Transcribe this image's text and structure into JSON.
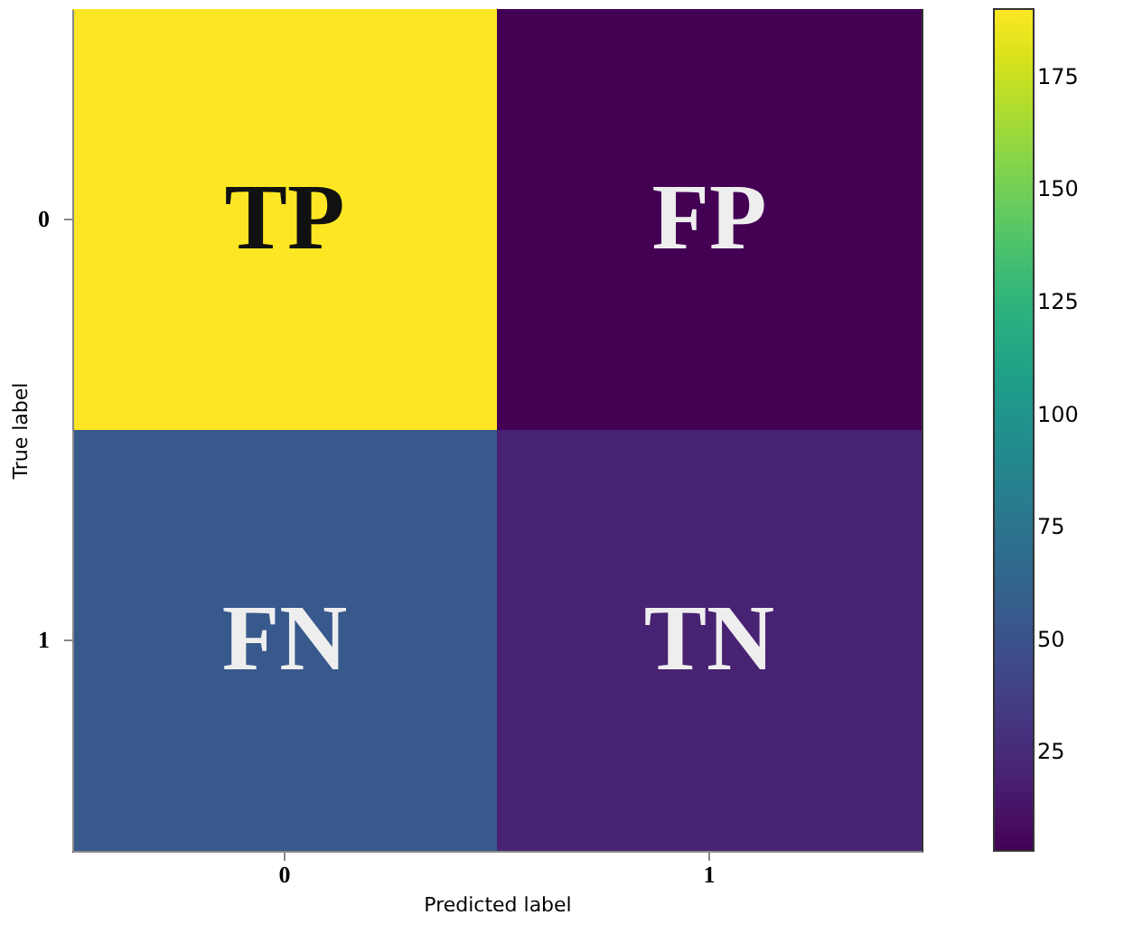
{
  "chart_data": {
    "type": "heatmap",
    "xlabel": "Predicted label",
    "ylabel": "True label",
    "categories": [
      "0",
      "1"
    ],
    "y_categories": [
      "0",
      "1"
    ],
    "cells": [
      [
        190,
        3
      ],
      [
        55,
        20
      ]
    ],
    "cell_labels": [
      [
        "TP",
        "FP"
      ],
      [
        "FN",
        "TN"
      ]
    ],
    "clim": [
      3,
      190
    ],
    "cticks": [
      25,
      50,
      75,
      100,
      125,
      150,
      175
    ]
  }
}
